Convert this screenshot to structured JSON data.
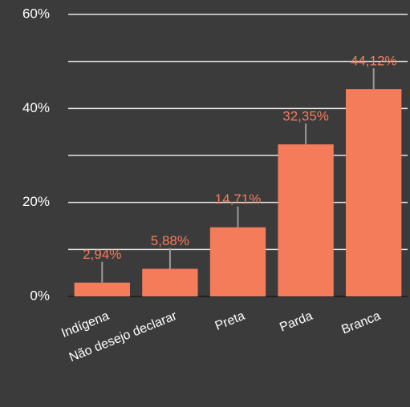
{
  "chart_data": {
    "type": "bar",
    "categories": [
      "Indígena",
      "Não desejo declarar",
      "Preta",
      "Parda",
      "Branca"
    ],
    "values": [
      2.94,
      5.88,
      14.71,
      32.35,
      44.12
    ],
    "value_labels": [
      "2,94%",
      "5,88%",
      "14,71%",
      "32,35%",
      "44,12%"
    ],
    "color": "#f47c5a",
    "ylim": [
      0,
      60
    ],
    "yticks": [
      {
        "value": 0,
        "label": "0%"
      },
      {
        "value": 20,
        "label": "20%"
      },
      {
        "value": 40,
        "label": "40%"
      },
      {
        "value": 60,
        "label": "60%"
      }
    ],
    "minor_yticks": [
      10,
      30,
      50
    ],
    "grid": true
  }
}
